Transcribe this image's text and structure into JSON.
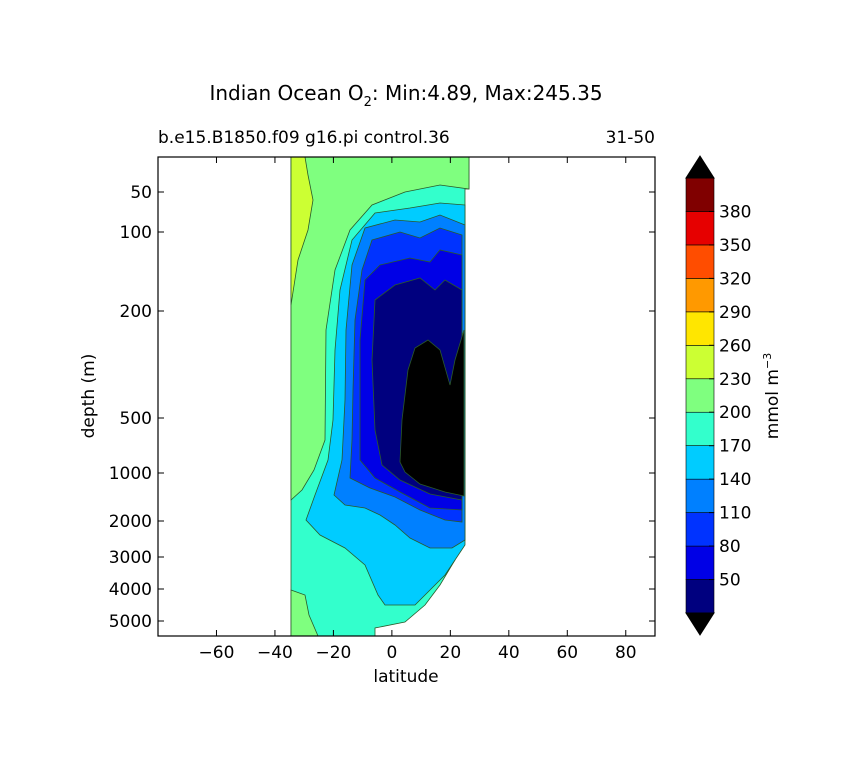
{
  "chart_data": {
    "type": "heatmap",
    "title_main": "Indian Ocean O",
    "title_sub": "2",
    "title_rest": ": Min:4.89, Max:245.35",
    "subtitle_left": "b.e15.B1850.f09 g16.pi control.36",
    "subtitle_right": "31-50",
    "xlabel": "latitude",
    "ylabel": "depth (m)",
    "xlim": [
      -80,
      90
    ],
    "ylim": [
      5500,
      20
    ],
    "y_scale": "depth-stretched (non-linear)",
    "xticks": [
      -60,
      -40,
      -20,
      0,
      20,
      40,
      60,
      80
    ],
    "xtick_labels": [
      "−60",
      "−40",
      "−20",
      "0",
      "20",
      "40",
      "60",
      "80"
    ],
    "yticks": [
      50,
      100,
      200,
      500,
      1000,
      2000,
      3000,
      4000,
      5000
    ],
    "ytick_labels": [
      "50",
      "100",
      "200",
      "500",
      "1000",
      "2000",
      "3000",
      "4000",
      "5000"
    ],
    "data_extent": {
      "lat_min": -34,
      "lat_max": 26
    },
    "colorbar": {
      "label": "mmol m",
      "label_exp": "−3",
      "levels": [
        20,
        50,
        80,
        110,
        140,
        170,
        200,
        230,
        260,
        290,
        320,
        350,
        380,
        410
      ],
      "tick_labels": [
        "50",
        "80",
        "110",
        "140",
        "170",
        "200",
        "230",
        "260",
        "290",
        "320",
        "350",
        "380"
      ],
      "colors": [
        "#00007f",
        "#0000e6",
        "#0033ff",
        "#0080ff",
        "#00ccff",
        "#33ffcc",
        "#7fff7f",
        "#ccff33",
        "#ffe600",
        "#ff9900",
        "#ff4d00",
        "#e60000",
        "#800000"
      ],
      "under_color": "#000000",
      "over_color": "#000000",
      "extend": "both"
    }
  }
}
